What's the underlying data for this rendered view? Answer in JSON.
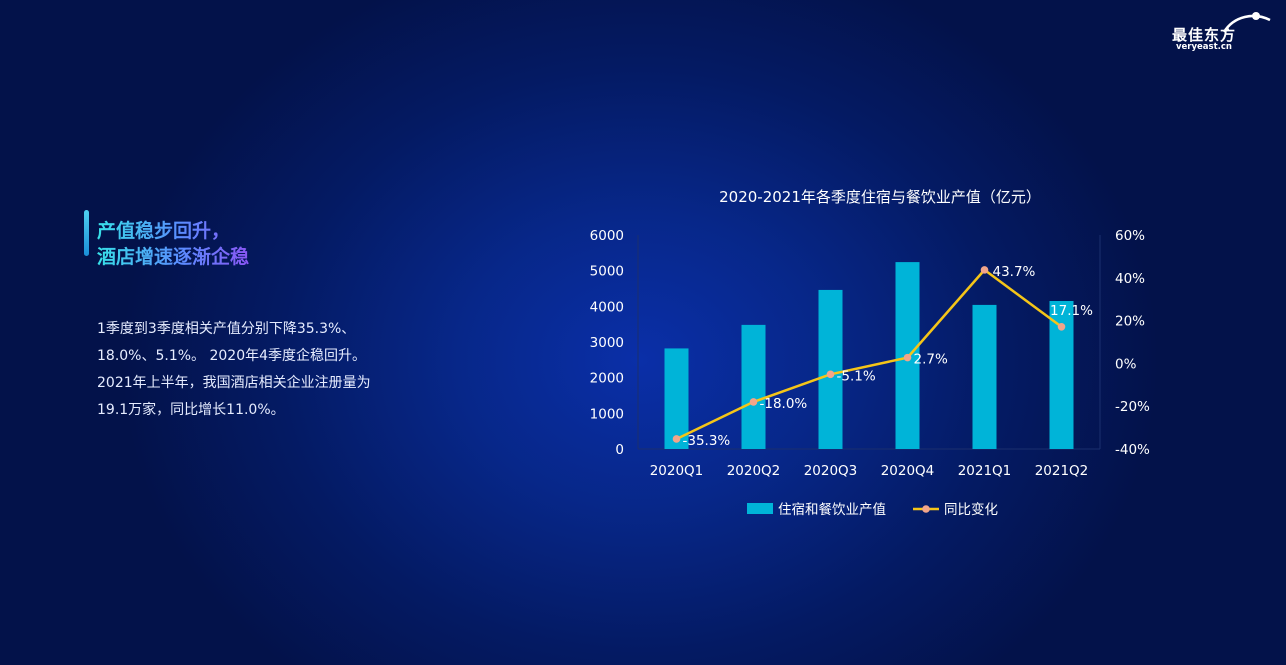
{
  "logo": {
    "cn": "最佳东方",
    "en": "veryeast.cn"
  },
  "headline": {
    "line1": "产值稳步回升，",
    "line2": "酒店增速逐渐企稳"
  },
  "body": {
    "lines": [
      "1季度到3季度相关产值分别下降35.3%、",
      "18.0%、5.1%。 2020年4季度企稳回升。",
      "2021年上半年，我国酒店相关企业注册量为",
      "19.1万家，同比增长11.0%。"
    ]
  },
  "chart_data": {
    "type": "bar",
    "title": "2020-2021年各季度住宿与餐饮业产值（亿元）",
    "categories": [
      "2020Q1",
      "2020Q2",
      "2020Q3",
      "2020Q4",
      "2021Q1",
      "2021Q2"
    ],
    "series": [
      {
        "name": "住宿和餐饮业产值",
        "type": "bar",
        "axis": "left",
        "values": [
          2820,
          3480,
          4460,
          5240,
          4040,
          4150
        ],
        "color": "#00b4d8"
      },
      {
        "name": "同比变化",
        "type": "line",
        "axis": "right",
        "values": [
          -35.3,
          -18.0,
          -5.1,
          2.7,
          43.7,
          17.1
        ],
        "labels": [
          "-35.3%",
          "-18.0%",
          "-5.1%",
          "2.7%",
          "43.7%",
          "17.1%"
        ],
        "color": "#f5c518",
        "marker_color": "#f2a58a"
      }
    ],
    "y_left": {
      "min": 0,
      "max": 6000,
      "ticks": [
        "0",
        "1000",
        "2000",
        "3000",
        "4000",
        "5000",
        "6000"
      ]
    },
    "y_right": {
      "min": -40,
      "max": 60,
      "ticks": [
        "-40%",
        "-20%",
        "0%",
        "20%",
        "40%",
        "60%"
      ]
    },
    "legend": "bottom",
    "grid": false
  }
}
